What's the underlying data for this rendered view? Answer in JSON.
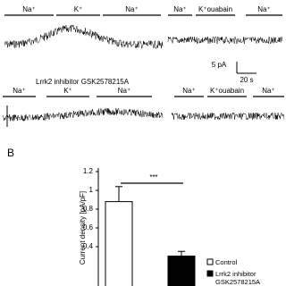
{
  "panel_a": {
    "row1_labels": [
      "Na⁺",
      "K⁺",
      "Na⁺",
      "Na⁺",
      "K⁺ouabain",
      "Na⁺"
    ],
    "scale_current": "5 pA",
    "scale_time": "20 s",
    "row2_title": "Lrrk2 inhibitor GSK2578215A",
    "row2_labels": [
      "Na⁺",
      "K⁺",
      "Na⁺",
      "Na⁺",
      "K⁺ouabain",
      "Na⁺"
    ]
  },
  "panel_b_label": "B",
  "chart_data": {
    "type": "bar",
    "y_label": "Current density [pA/pF]",
    "series": [
      {
        "name": "Control",
        "color": "#ffffff",
        "values": [
          0.88
        ],
        "errors": [
          0.16
        ]
      },
      {
        "name": "Lrrk2 inhibitor GSK2578215A",
        "color": "#000000",
        "values": [
          0.3
        ],
        "errors": [
          0.05
        ]
      }
    ],
    "significance": "***",
    "ylim": [
      0,
      1.2
    ],
    "yticks": [
      0.4,
      0.6,
      0.8,
      1,
      1.2
    ]
  }
}
